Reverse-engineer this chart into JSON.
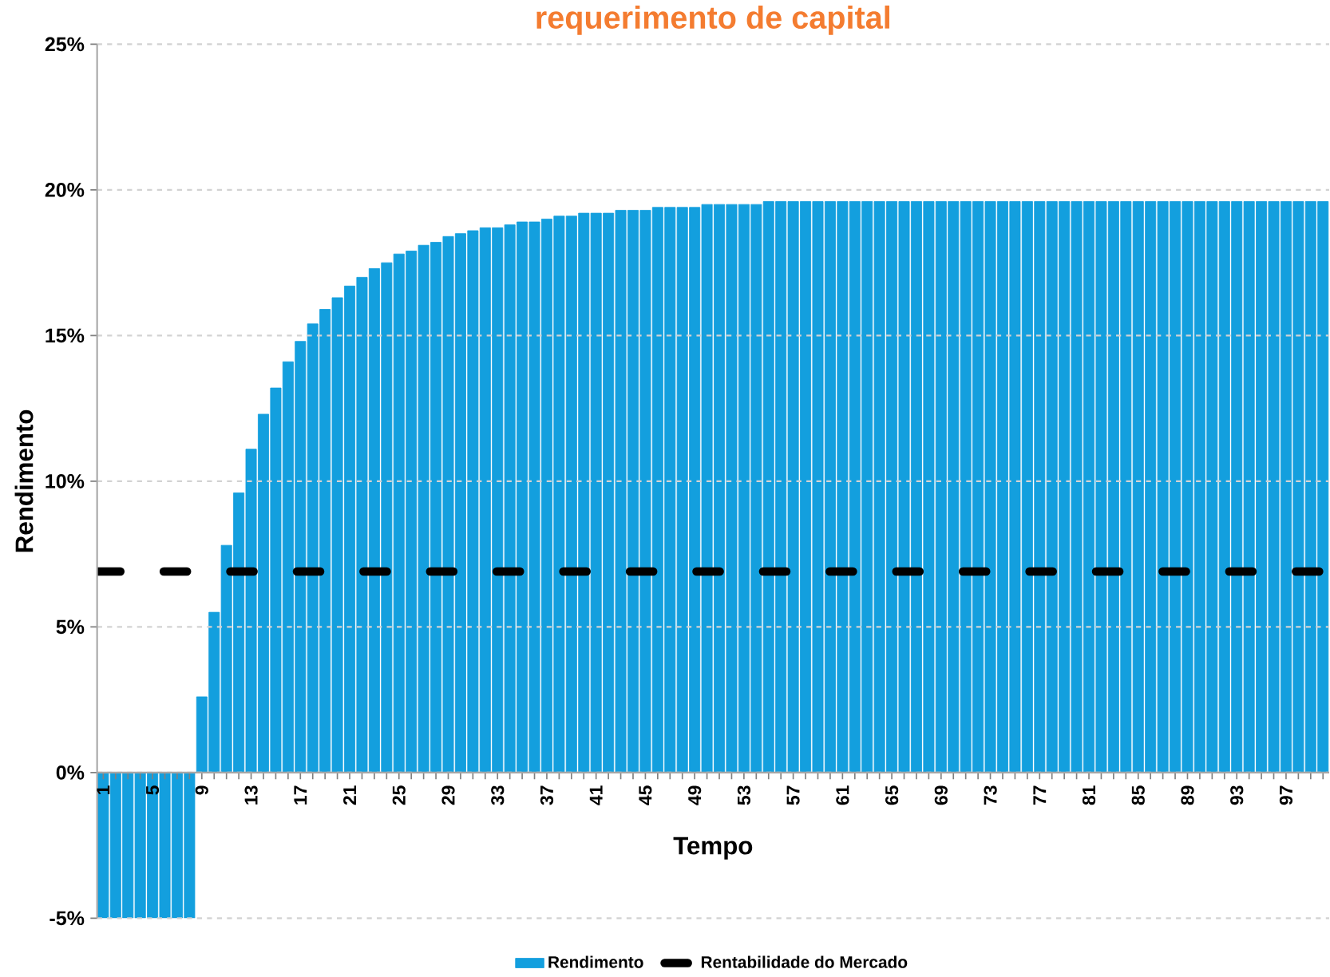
{
  "chart_data": {
    "type": "bar",
    "title": "requerimento de capital",
    "xlabel": "Tempo",
    "ylabel": "Rendimento",
    "categories": [
      "1",
      null,
      null,
      null,
      "5",
      null,
      null,
      null,
      "9",
      null,
      null,
      null,
      "13",
      null,
      null,
      null,
      "17",
      null,
      null,
      null,
      "21",
      null,
      null,
      null,
      "25",
      null,
      null,
      null,
      "29",
      null,
      null,
      null,
      "33",
      null,
      null,
      null,
      "37",
      null,
      null,
      null,
      "41",
      null,
      null,
      null,
      "45",
      null,
      null,
      null,
      "49",
      null,
      null,
      null,
      "53",
      null,
      null,
      null,
      "57",
      null,
      null,
      null,
      "61",
      null,
      null,
      null,
      "65",
      null,
      null,
      null,
      "69",
      null,
      null,
      null,
      "73",
      null,
      null,
      null,
      "77",
      null,
      null,
      null,
      "81",
      null,
      null,
      null,
      "85",
      null,
      null,
      null,
      "89",
      null,
      null,
      null,
      "93",
      null,
      null,
      null,
      "97",
      null,
      null,
      null
    ],
    "series": [
      {
        "name": "Rendimento",
        "color": "#139fde",
        "values": [
          -5,
          -5,
          -5,
          -5,
          -5,
          -5,
          -5,
          -5,
          2.6,
          5.5,
          7.8,
          9.6,
          11.1,
          12.3,
          13.2,
          14.1,
          14.8,
          15.4,
          15.9,
          16.3,
          16.7,
          17.0,
          17.3,
          17.5,
          17.8,
          17.9,
          18.1,
          18.2,
          18.4,
          18.5,
          18.6,
          18.7,
          18.7,
          18.8,
          18.9,
          18.9,
          19.0,
          19.1,
          19.1,
          19.2,
          19.2,
          19.2,
          19.3,
          19.3,
          19.3,
          19.4,
          19.4,
          19.4,
          19.4,
          19.5,
          19.5,
          19.5,
          19.5,
          19.5,
          19.6,
          19.6,
          19.6,
          19.6,
          19.6,
          19.6,
          19.6,
          19.6,
          19.6,
          19.6,
          19.6,
          19.6,
          19.6,
          19.6,
          19.6,
          19.6,
          19.6,
          19.6,
          19.6,
          19.6,
          19.6,
          19.6,
          19.6,
          19.6,
          19.6,
          19.6,
          19.6,
          19.6,
          19.6,
          19.6,
          19.6,
          19.6,
          19.6,
          19.6,
          19.6,
          19.6,
          19.6,
          19.6,
          19.6,
          19.6,
          19.6,
          19.6,
          19.6,
          19.6,
          19.6,
          19.6
        ]
      }
    ],
    "ylim": [
      -5,
      25
    ],
    "yticks": [
      {
        "value": -5,
        "label": "-5%"
      },
      {
        "value": 0,
        "label": "0%"
      },
      {
        "value": 5,
        "label": "5%"
      },
      {
        "value": 10,
        "label": "10%"
      },
      {
        "value": 15,
        "label": "15%"
      },
      {
        "value": 20,
        "label": "20%"
      },
      {
        "value": 25,
        "label": "25%"
      }
    ],
    "ref_lines": [
      {
        "axis": "y",
        "value": 6.9,
        "label": "Rentabilidade do Mercado",
        "color": "#000000",
        "line_style": "dashed"
      }
    ],
    "grid": "y",
    "legend": "bottom"
  }
}
